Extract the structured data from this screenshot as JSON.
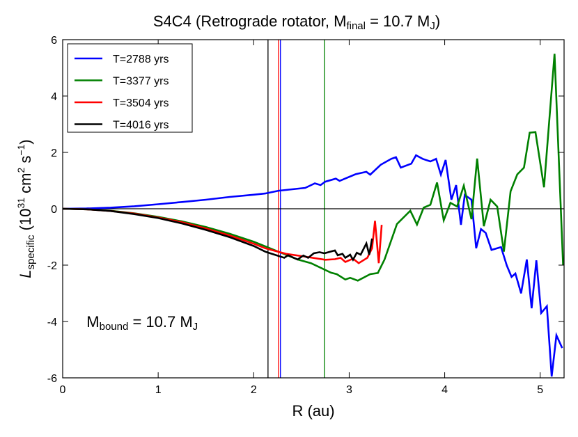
{
  "chart_data": {
    "type": "line",
    "title": {
      "main": "S4C4 (Retrograde rotator,  M",
      "sub": "final",
      "mid": " = 10.7 M",
      "sub2": "J",
      "end": ")"
    },
    "xlabel": "R (au)",
    "ylabel": {
      "sym": "L",
      "sub": "specific",
      "unit_a": " (10",
      "sup": "31",
      "unit_b": " cm",
      "sup2": "2",
      "unit_c": " s",
      "sup3": "−1",
      "unit_d": ")"
    },
    "xlim": [
      0,
      5.25
    ],
    "ylim": [
      -6,
      6
    ],
    "xticks": [
      0,
      1,
      2,
      3,
      4,
      5
    ],
    "xtick_labels": [
      "0",
      "1",
      "2",
      "3",
      "4",
      "5"
    ],
    "yticks": [
      -6,
      -4,
      -2,
      0,
      2,
      4,
      6
    ],
    "ytick_labels": [
      "-6",
      "-4",
      "-2",
      "0",
      "2",
      "4",
      "6"
    ],
    "grid": false,
    "legend_position": "top-left",
    "hline": 0,
    "vlines": [
      {
        "x": 2.15,
        "color": "#000000"
      },
      {
        "x": 2.26,
        "color": "#ff0000"
      },
      {
        "x": 2.28,
        "color": "#0000ff"
      },
      {
        "x": 2.74,
        "color": "#008000"
      }
    ],
    "annotation": {
      "main": "M",
      "sub": "bound",
      "mid": " = 10.7 M",
      "sub2": "J",
      "x": 0.25,
      "y": -4.0
    },
    "series": [
      {
        "name": "T=2788 yrs",
        "color": "#0000ff",
        "x": [
          0,
          0.25,
          0.5,
          0.75,
          1.0,
          1.25,
          1.5,
          1.75,
          2.0,
          2.12,
          2.26,
          2.54,
          2.64,
          2.7,
          2.75,
          2.86,
          2.9,
          3.07,
          3.18,
          3.22,
          3.33,
          3.44,
          3.49,
          3.54,
          3.65,
          3.7,
          3.77,
          3.85,
          3.91,
          3.96,
          4.01,
          4.07,
          4.12,
          4.17,
          4.21,
          4.28,
          4.33,
          4.38,
          4.43,
          4.49,
          4.59,
          4.65,
          4.7,
          4.74,
          4.8,
          4.86,
          4.91,
          4.96,
          5.01,
          5.07,
          5.12,
          5.17,
          5.23
        ],
        "y": [
          0,
          0.01,
          0.04,
          0.09,
          0.16,
          0.24,
          0.32,
          0.42,
          0.5,
          0.54,
          0.64,
          0.74,
          0.9,
          0.84,
          0.96,
          1.07,
          0.99,
          1.23,
          1.31,
          1.21,
          1.56,
          1.77,
          1.83,
          1.46,
          1.6,
          1.9,
          1.77,
          1.68,
          1.77,
          1.21,
          1.73,
          0.32,
          0.84,
          -0.57,
          0.49,
          0.32,
          -1.4,
          -0.72,
          -0.86,
          -1.46,
          -1.36,
          -2.01,
          -2.42,
          -2.3,
          -3.0,
          -1.8,
          -3.53,
          -1.83,
          -3.7,
          -3.46,
          -5.95,
          -4.49,
          -4.94
        ]
      },
      {
        "name": "T=3377 yrs",
        "color": "#008000",
        "x": [
          0,
          0.25,
          0.5,
          0.75,
          1.0,
          1.25,
          1.5,
          1.75,
          2.0,
          2.12,
          2.46,
          2.6,
          2.81,
          2.87,
          2.96,
          3.01,
          3.09,
          3.22,
          3.3,
          3.37,
          3.5,
          3.64,
          3.71,
          3.78,
          3.85,
          3.92,
          3.99,
          4.06,
          4.13,
          4.2,
          4.28,
          4.34,
          4.41,
          4.48,
          4.55,
          4.62,
          4.69,
          4.76,
          4.83,
          4.89,
          4.95,
          5.04,
          5.15,
          5.24
        ],
        "y": [
          0,
          -0.02,
          -0.07,
          -0.16,
          -0.29,
          -0.45,
          -0.65,
          -0.89,
          -1.17,
          -1.33,
          -1.8,
          -1.93,
          -2.27,
          -2.32,
          -2.51,
          -2.45,
          -2.55,
          -2.32,
          -2.28,
          -1.8,
          -0.54,
          -0.07,
          -0.56,
          0.04,
          0.14,
          0.93,
          -0.41,
          0.21,
          0.08,
          0.82,
          -0.37,
          1.78,
          -0.62,
          0.32,
          0.08,
          -1.52,
          0.62,
          1.22,
          1.46,
          2.7,
          2.72,
          0.76,
          5.5,
          -2.0
        ]
      },
      {
        "name": "T=3504 yrs",
        "color": "#ff0000",
        "x": [
          0,
          0.25,
          0.5,
          0.75,
          1.0,
          1.25,
          1.5,
          1.75,
          2.0,
          2.12,
          2.34,
          2.5,
          2.75,
          2.85,
          2.91,
          2.96,
          3.04,
          3.1,
          3.19,
          3.24,
          3.27,
          3.31,
          3.34
        ],
        "y": [
          0,
          -0.02,
          -0.08,
          -0.17,
          -0.31,
          -0.48,
          -0.7,
          -0.95,
          -1.24,
          -1.4,
          -1.6,
          -1.68,
          -1.81,
          -1.79,
          -1.74,
          -1.89,
          -1.77,
          -1.93,
          -1.74,
          -1.4,
          -0.43,
          -1.93,
          -0.57
        ]
      },
      {
        "name": "T=4016 yrs",
        "color": "#000000",
        "x": [
          0,
          0.25,
          0.5,
          0.75,
          1.0,
          1.25,
          1.5,
          1.75,
          2.0,
          2.12,
          2.32,
          2.36,
          2.46,
          2.52,
          2.57,
          2.63,
          2.69,
          2.74,
          2.85,
          2.88,
          2.93,
          2.96,
          3.01,
          3.04,
          3.08,
          3.12,
          3.18,
          3.21,
          3.24
        ],
        "y": [
          0,
          -0.02,
          -0.08,
          -0.19,
          -0.33,
          -0.52,
          -0.75,
          -1.01,
          -1.32,
          -1.52,
          -1.74,
          -1.65,
          -1.8,
          -1.66,
          -1.74,
          -1.58,
          -1.54,
          -1.58,
          -1.48,
          -1.65,
          -1.6,
          -1.74,
          -1.63,
          -1.81,
          -1.56,
          -1.63,
          -1.23,
          -1.63,
          -1.06
        ]
      }
    ]
  }
}
